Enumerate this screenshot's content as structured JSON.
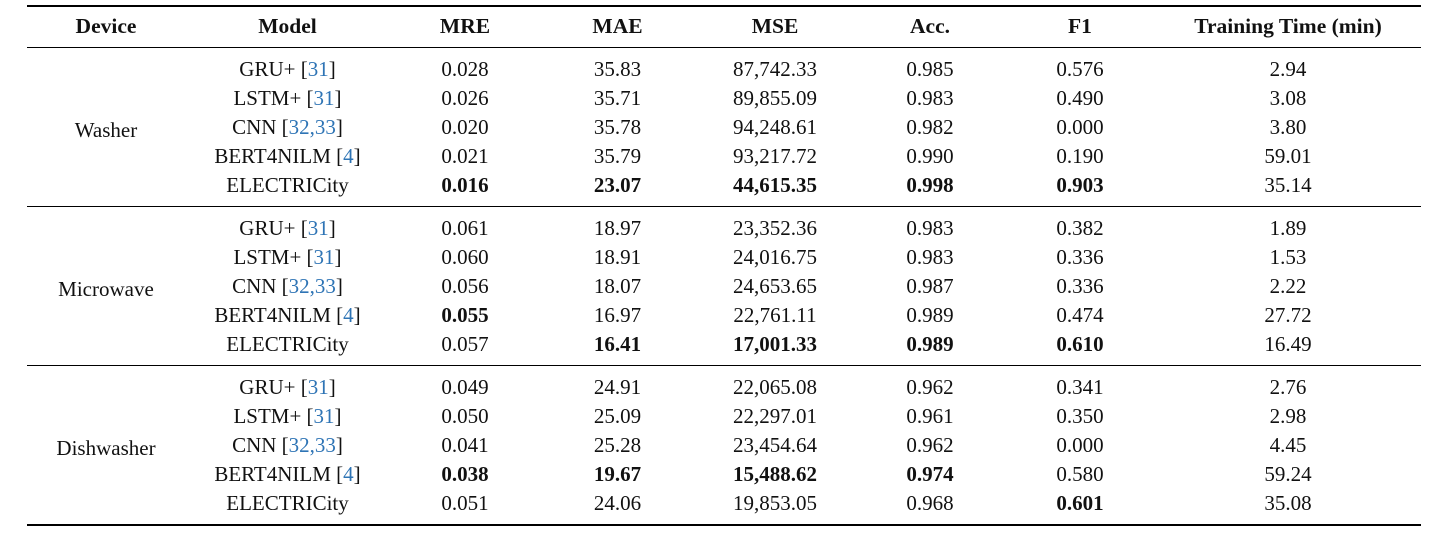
{
  "colors": {
    "citation_blue": "#2e74b5",
    "rule_black": "#000000",
    "text": "#111111"
  },
  "table": {
    "columns": [
      {
        "label": "Device"
      },
      {
        "label": "Model"
      },
      {
        "label": "MRE"
      },
      {
        "label": "MAE"
      },
      {
        "label": "MSE"
      },
      {
        "label": "Acc."
      },
      {
        "label": "F1"
      },
      {
        "label": "Training Time (min)"
      }
    ],
    "groups": [
      {
        "device": "Washer",
        "rows": [
          {
            "model": "GRU+",
            "cite": "31",
            "values": [
              {
                "t": "0.028"
              },
              {
                "t": "35.83"
              },
              {
                "t": "87,742.33"
              },
              {
                "t": "0.985"
              },
              {
                "t": "0.576"
              },
              {
                "t": "2.94"
              }
            ]
          },
          {
            "model": "LSTM+",
            "cite": "31",
            "values": [
              {
                "t": "0.026"
              },
              {
                "t": "35.71"
              },
              {
                "t": "89,855.09"
              },
              {
                "t": "0.983"
              },
              {
                "t": "0.490"
              },
              {
                "t": "3.08"
              }
            ]
          },
          {
            "model": "CNN",
            "cite": "32,33",
            "values": [
              {
                "t": "0.020"
              },
              {
                "t": "35.78"
              },
              {
                "t": "94,248.61"
              },
              {
                "t": "0.982"
              },
              {
                "t": "0.000"
              },
              {
                "t": "3.80"
              }
            ]
          },
          {
            "model": "BERT4NILM",
            "cite": "4",
            "values": [
              {
                "t": "0.021"
              },
              {
                "t": "35.79"
              },
              {
                "t": "93,217.72"
              },
              {
                "t": "0.990"
              },
              {
                "t": "0.190"
              },
              {
                "t": "59.01"
              }
            ]
          },
          {
            "model": "ELECTRICity",
            "cite": null,
            "values": [
              {
                "t": "0.016",
                "b": true
              },
              {
                "t": "23.07",
                "b": true
              },
              {
                "t": "44,615.35",
                "b": true
              },
              {
                "t": "0.998",
                "b": true
              },
              {
                "t": "0.903",
                "b": true
              },
              {
                "t": "35.14"
              }
            ]
          }
        ]
      },
      {
        "device": "Microwave",
        "rows": [
          {
            "model": "GRU+",
            "cite": "31",
            "values": [
              {
                "t": "0.061"
              },
              {
                "t": "18.97"
              },
              {
                "t": "23,352.36"
              },
              {
                "t": "0.983"
              },
              {
                "t": "0.382"
              },
              {
                "t": "1.89"
              }
            ]
          },
          {
            "model": "LSTM+",
            "cite": "31",
            "values": [
              {
                "t": "0.060"
              },
              {
                "t": "18.91"
              },
              {
                "t": "24,016.75"
              },
              {
                "t": "0.983"
              },
              {
                "t": "0.336"
              },
              {
                "t": "1.53"
              }
            ]
          },
          {
            "model": "CNN",
            "cite": "32,33",
            "values": [
              {
                "t": "0.056"
              },
              {
                "t": "18.07"
              },
              {
                "t": "24,653.65"
              },
              {
                "t": "0.987"
              },
              {
                "t": "0.336"
              },
              {
                "t": "2.22"
              }
            ]
          },
          {
            "model": "BERT4NILM",
            "cite": "4",
            "values": [
              {
                "t": "0.055",
                "b": true
              },
              {
                "t": "16.97"
              },
              {
                "t": "22,761.11"
              },
              {
                "t": "0.989"
              },
              {
                "t": "0.474"
              },
              {
                "t": "27.72"
              }
            ]
          },
          {
            "model": "ELECTRICity",
            "cite": null,
            "values": [
              {
                "t": "0.057"
              },
              {
                "t": "16.41",
                "b": true
              },
              {
                "t": "17,001.33",
                "b": true
              },
              {
                "t": "0.989",
                "b": true
              },
              {
                "t": "0.610",
                "b": true
              },
              {
                "t": "16.49"
              }
            ]
          }
        ]
      },
      {
        "device": "Dishwasher",
        "rows": [
          {
            "model": "GRU+",
            "cite": "31",
            "values": [
              {
                "t": "0.049"
              },
              {
                "t": "24.91"
              },
              {
                "t": "22,065.08"
              },
              {
                "t": "0.962"
              },
              {
                "t": "0.341"
              },
              {
                "t": "2.76"
              }
            ]
          },
          {
            "model": "LSTM+",
            "cite": "31",
            "values": [
              {
                "t": "0.050"
              },
              {
                "t": "25.09"
              },
              {
                "t": "22,297.01"
              },
              {
                "t": "0.961"
              },
              {
                "t": "0.350"
              },
              {
                "t": "2.98"
              }
            ]
          },
          {
            "model": "CNN",
            "cite": "32,33",
            "values": [
              {
                "t": "0.041"
              },
              {
                "t": "25.28"
              },
              {
                "t": "23,454.64"
              },
              {
                "t": "0.962"
              },
              {
                "t": "0.000"
              },
              {
                "t": "4.45"
              }
            ]
          },
          {
            "model": "BERT4NILM",
            "cite": "4",
            "values": [
              {
                "t": "0.038",
                "b": true
              },
              {
                "t": "19.67",
                "b": true
              },
              {
                "t": "15,488.62",
                "b": true
              },
              {
                "t": "0.974",
                "b": true
              },
              {
                "t": "0.580"
              },
              {
                "t": "59.24"
              }
            ]
          },
          {
            "model": "ELECTRICity",
            "cite": null,
            "values": [
              {
                "t": "0.051"
              },
              {
                "t": "24.06"
              },
              {
                "t": "19,853.05"
              },
              {
                "t": "0.968"
              },
              {
                "t": "0.601",
                "b": true
              },
              {
                "t": "35.08"
              }
            ]
          }
        ]
      }
    ]
  }
}
